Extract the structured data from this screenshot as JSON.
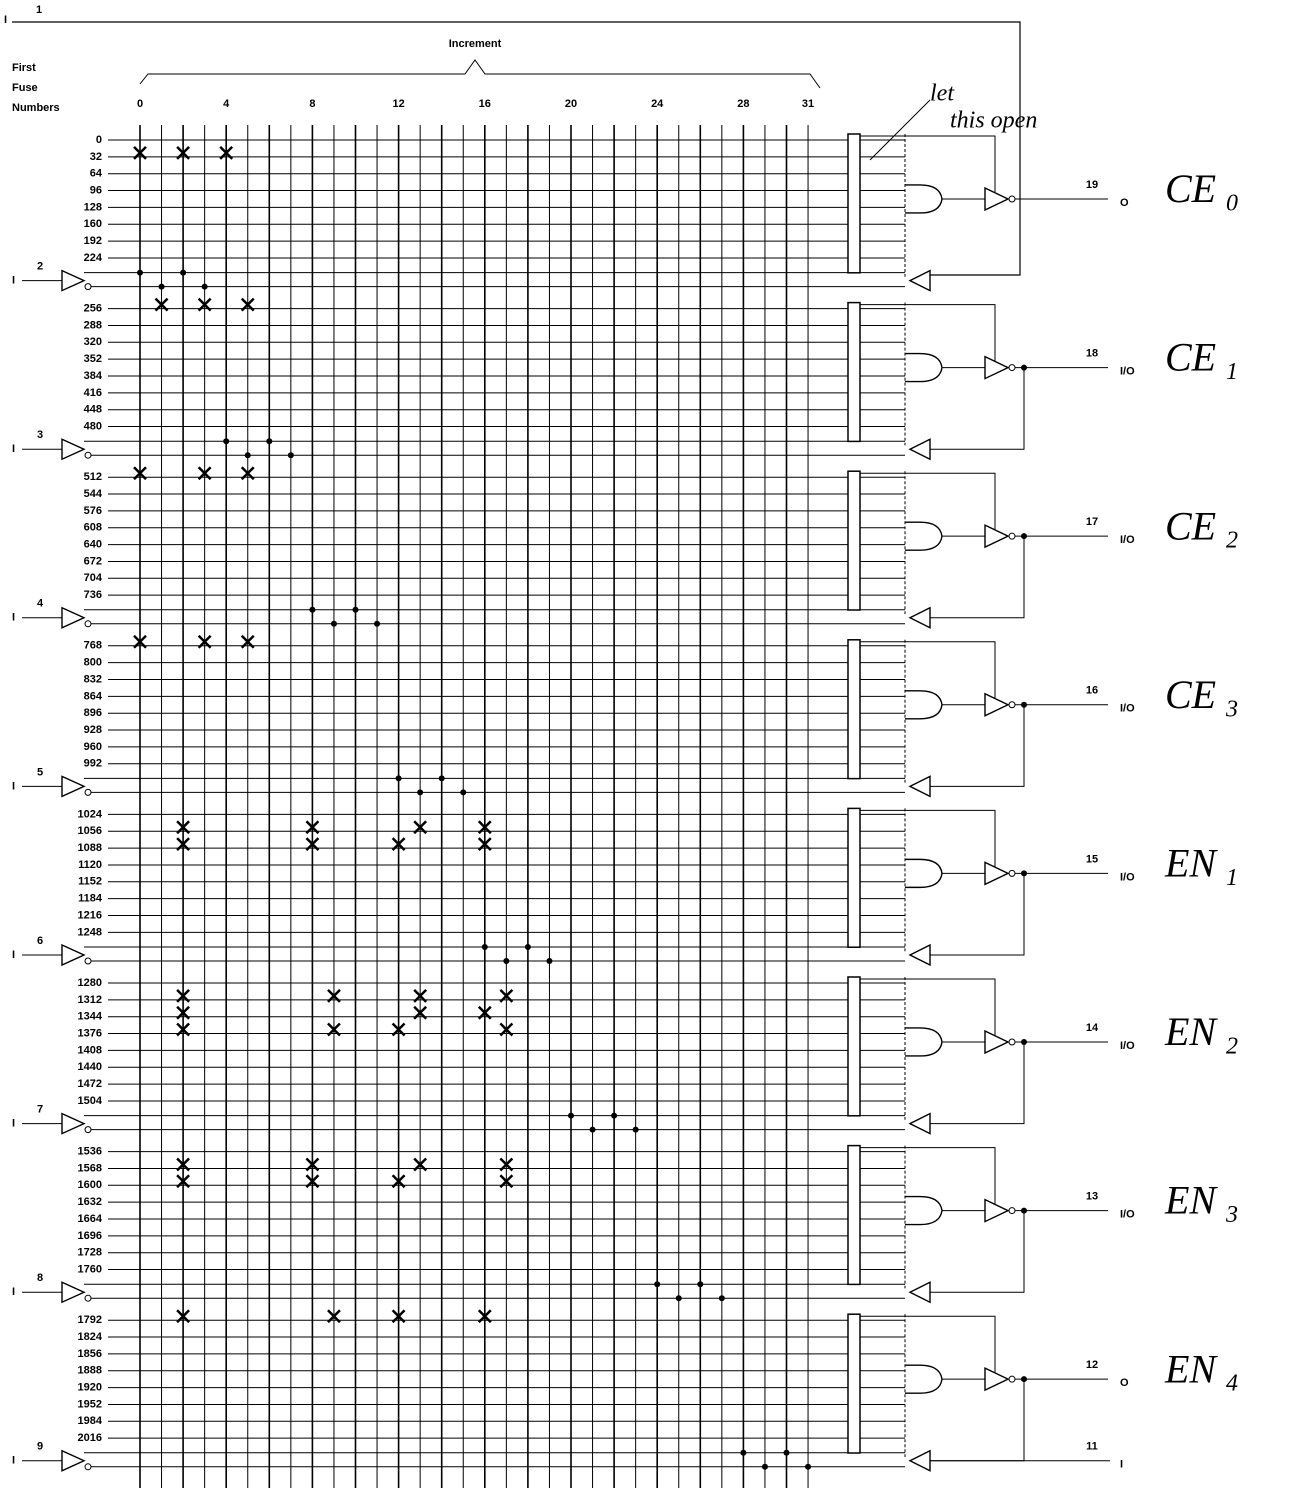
{
  "top_pin": {
    "pin": "1",
    "label": "I"
  },
  "increment_label": "Increment",
  "fuse_header": [
    "First",
    "Fuse",
    "Numbers"
  ],
  "columns": [
    0,
    4,
    8,
    12,
    16,
    20,
    24,
    28,
    31
  ],
  "fuse_numbers": [
    0,
    32,
    64,
    96,
    128,
    160,
    192,
    224,
    256,
    288,
    320,
    352,
    384,
    416,
    448,
    480,
    512,
    544,
    576,
    608,
    640,
    672,
    704,
    736,
    768,
    800,
    832,
    864,
    896,
    928,
    960,
    992,
    1024,
    1056,
    1088,
    1120,
    1152,
    1184,
    1216,
    1248,
    1280,
    1312,
    1344,
    1376,
    1408,
    1440,
    1472,
    1504,
    1536,
    1568,
    1600,
    1632,
    1664,
    1696,
    1728,
    1760,
    1792,
    1824,
    1856,
    1888,
    1920,
    1952,
    1984,
    2016
  ],
  "inputs": [
    {
      "pin": "2",
      "label": "I"
    },
    {
      "pin": "3",
      "label": "I"
    },
    {
      "pin": "4",
      "label": "I"
    },
    {
      "pin": "5",
      "label": "I"
    },
    {
      "pin": "6",
      "label": "I"
    },
    {
      "pin": "7",
      "label": "I"
    },
    {
      "pin": "8",
      "label": "I"
    },
    {
      "pin": "9",
      "label": "I"
    }
  ],
  "outputs": [
    {
      "pin": "19",
      "label": "O",
      "note": {
        "main": "CE",
        "sub": "0"
      }
    },
    {
      "pin": "18",
      "label": "I/O",
      "note": {
        "main": "CE",
        "sub": "1"
      }
    },
    {
      "pin": "17",
      "label": "I/O",
      "note": {
        "main": "CE",
        "sub": "2"
      }
    },
    {
      "pin": "16",
      "label": "I/O",
      "note": {
        "main": "CE",
        "sub": "3"
      }
    },
    {
      "pin": "15",
      "label": "I/O",
      "note": {
        "main": "EN",
        "sub": "1"
      }
    },
    {
      "pin": "14",
      "label": "I/O",
      "note": {
        "main": "EN",
        "sub": "2"
      }
    },
    {
      "pin": "13",
      "label": "I/O",
      "note": {
        "main": "EN",
        "sub": "3"
      }
    },
    {
      "pin": "12",
      "label": "O",
      "note": {
        "main": "EN",
        "sub": "4"
      }
    }
  ],
  "bottom_right": {
    "pin": "11",
    "label": "I"
  },
  "annotation": [
    "let",
    "this open"
  ]
}
